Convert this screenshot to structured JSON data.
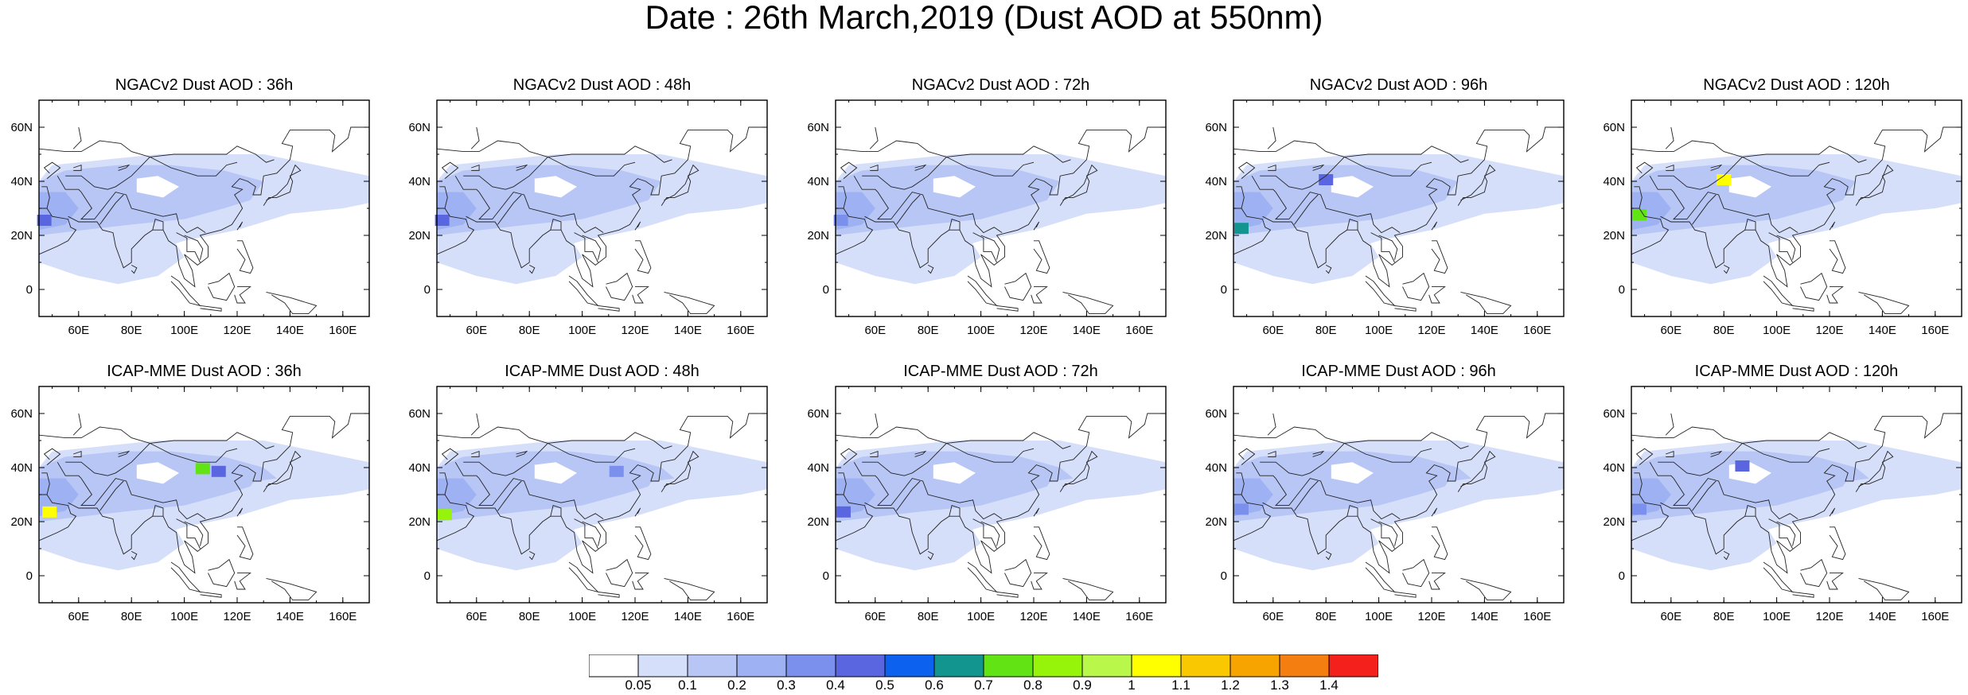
{
  "title": "Date : 26th March,2019 (Dust AOD at 550nm)",
  "map_extent": {
    "lon": [
      45,
      170
    ],
    "lat": [
      -10,
      70
    ]
  },
  "lon_ticks": [
    "60E",
    "80E",
    "100E",
    "120E",
    "140E",
    "160E"
  ],
  "lat_ticks": [
    "60N",
    "40N",
    "20N",
    "0"
  ],
  "panels": [
    {
      "title": "NGACv2 Dust AOD : 36h",
      "hotspots": [
        {
          "lon": 47,
          "lat": 25,
          "aod": 0.45
        }
      ]
    },
    {
      "title": "NGACv2 Dust AOD : 48h",
      "hotspots": [
        {
          "lon": 47,
          "lat": 25,
          "aod": 0.4
        }
      ]
    },
    {
      "title": "NGACv2 Dust AOD : 72h",
      "hotspots": [
        {
          "lon": 47,
          "lat": 25,
          "aod": 0.35
        }
      ]
    },
    {
      "title": "NGACv2 Dust AOD : 96h",
      "hotspots": [
        {
          "lon": 48,
          "lat": 22,
          "aod": 0.6
        },
        {
          "lon": 80,
          "lat": 40,
          "aod": 0.4
        }
      ]
    },
    {
      "title": "NGACv2 Dust AOD : 120h",
      "hotspots": [
        {
          "lon": 48,
          "lat": 27,
          "aod": 0.7
        },
        {
          "lon": 80,
          "lat": 40,
          "aod": 1.0
        }
      ]
    },
    {
      "title": "ICAP-MME Dust AOD : 36h",
      "hotspots": [
        {
          "lon": 49,
          "lat": 23,
          "aod": 1.0
        },
        {
          "lon": 107,
          "lat": 39,
          "aod": 0.75
        },
        {
          "lon": 113,
          "lat": 38,
          "aod": 0.4
        }
      ]
    },
    {
      "title": "ICAP-MME Dust AOD : 48h",
      "hotspots": [
        {
          "lon": 48,
          "lat": 22,
          "aod": 0.8
        },
        {
          "lon": 113,
          "lat": 38,
          "aod": 0.35
        }
      ]
    },
    {
      "title": "ICAP-MME Dust AOD : 72h",
      "hotspots": [
        {
          "lon": 48,
          "lat": 23,
          "aod": 0.45
        }
      ]
    },
    {
      "title": "ICAP-MME Dust AOD : 96h",
      "hotspots": [
        {
          "lon": 48,
          "lat": 24,
          "aod": 0.35
        }
      ]
    },
    {
      "title": "ICAP-MME Dust AOD : 120h",
      "hotspots": [
        {
          "lon": 48,
          "lat": 24,
          "aod": 0.35
        },
        {
          "lon": 87,
          "lat": 40,
          "aod": 0.4
        }
      ]
    }
  ],
  "colorbar": {
    "colors": [
      "#ffffff",
      "#d6dffa",
      "#b8c6f6",
      "#9eb1f2",
      "#7b90ec",
      "#5a66e0",
      "#0c62ee",
      "#13958f",
      "#62e414",
      "#96f40a",
      "#b9f74a",
      "#ffff00",
      "#f9c800",
      "#f7a400",
      "#f57e10",
      "#f4201c"
    ],
    "labels": [
      "0.05",
      "0.1",
      "0.2",
      "0.3",
      "0.4",
      "0.5",
      "0.6",
      "0.7",
      "0.8",
      "0.9",
      "1",
      "1.1",
      "1.2",
      "1.3",
      "1.4"
    ]
  }
}
